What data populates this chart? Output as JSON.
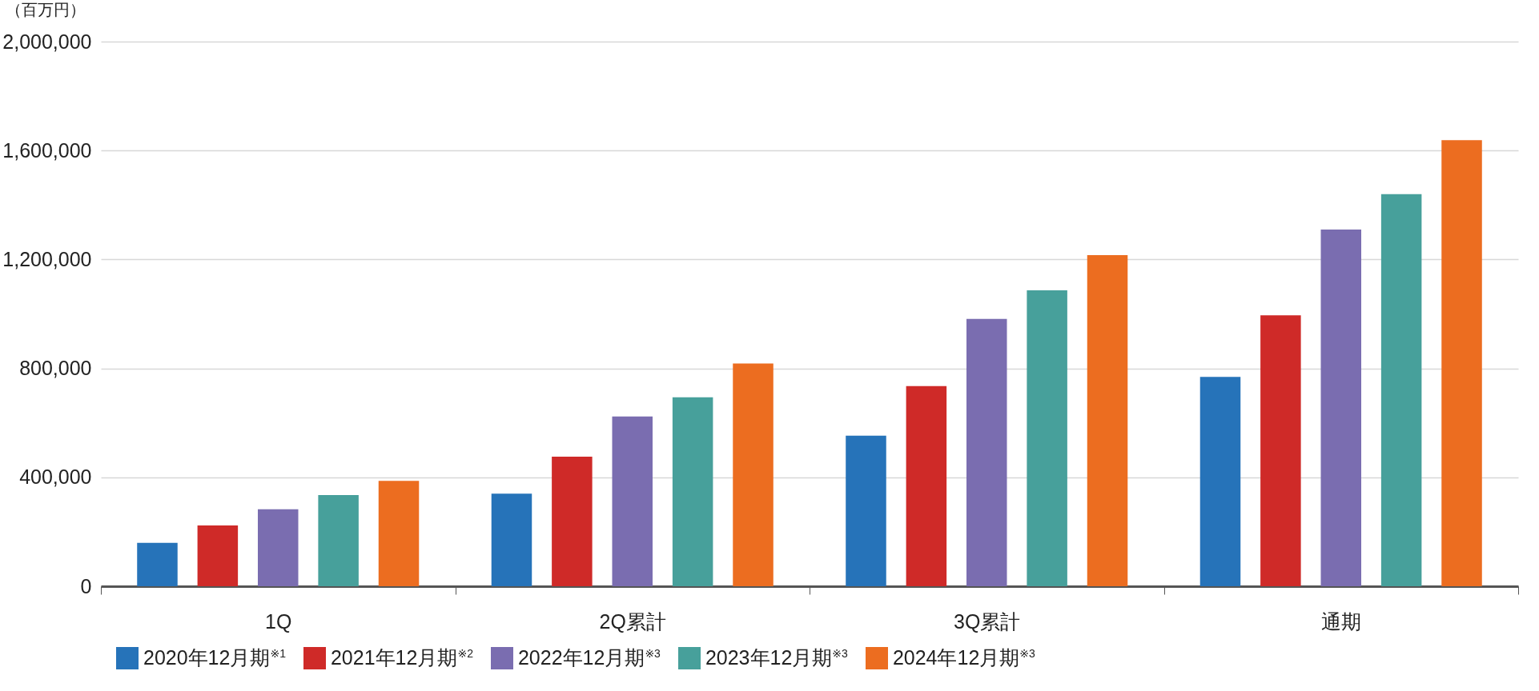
{
  "chart_data": {
    "type": "bar",
    "ylabel": "（百万円）",
    "categories": [
      "1Q",
      "2Q累計",
      "3Q累計",
      "通期"
    ],
    "series": [
      {
        "name": "2020年12月期$^{※1}$",
        "color": "#2673b9",
        "values": [
          159000,
          340000,
          553000,
          769000
        ]
      },
      {
        "name": "2021年12月期$^{※2}$",
        "color": "#cf2a28",
        "values": [
          223000,
          476000,
          735000,
          995000
        ]
      },
      {
        "name": "2022年12月期$^{※3}$",
        "color": "#7a6db0",
        "values": [
          283000,
          623000,
          982000,
          1310000
        ]
      },
      {
        "name": "2023年12月期$^{※3}$",
        "color": "#47a09b",
        "values": [
          335000,
          694000,
          1087000,
          1440000
        ]
      },
      {
        "name": "2024年12月期$^{※3}$",
        "color": "#ec6d20",
        "values": [
          387000,
          818000,
          1216000,
          1638000
        ]
      }
    ],
    "ylim": [
      0,
      2000000
    ],
    "yticks": [
      0,
      {
        "value": 400000,
        "label": "400,000"
      },
      {
        "value": 800000,
        "label": "800,000"
      },
      {
        "value": 1200000,
        "label": "1,200,000"
      },
      {
        "value": 1600000,
        "label": "1,600,000"
      },
      {
        "value": 2000000,
        "label": "2,000,000"
      }
    ],
    "grid": "y",
    "legend": "bottom"
  }
}
